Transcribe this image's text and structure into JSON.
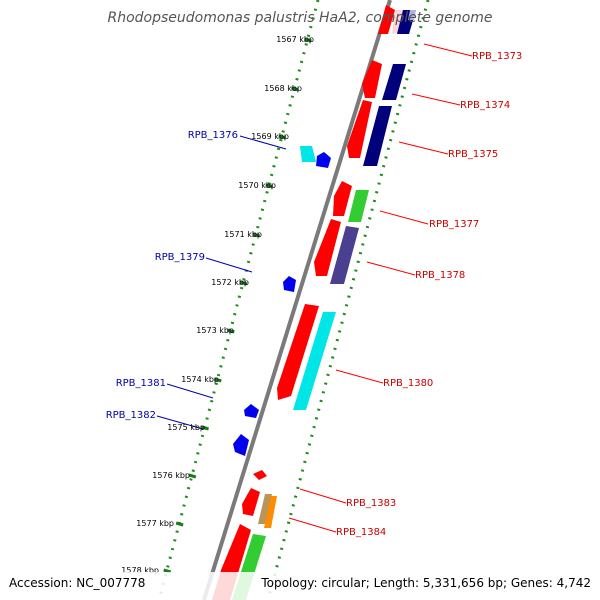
{
  "title": "Rhodopseudomonas palustris HaA2, complete genome",
  "footer": {
    "accession": "Accession: NC_007778",
    "topology": "Topology: circular; Length: 5,331,656 bp; Genes: 4,742"
  },
  "kbp_ticks": [
    "1567 kbp",
    "1568 kbp",
    "1569 kbp",
    "1570 kbp",
    "1571 kbp",
    "1572 kbp",
    "1573 kbp",
    "1574 kbp",
    "1575 kbp",
    "1576 kbp",
    "1577 kbp",
    "1578 kbp"
  ],
  "right_labels": [
    "RPB_1373",
    "RPB_1374",
    "RPB_1375",
    "RPB_1377",
    "RPB_1378",
    "RPB_1380",
    "RPB_1383",
    "RPB_1384"
  ],
  "left_labels": [
    "RPB_1376",
    "RPB_1379",
    "RPB_1381",
    "RPB_1382"
  ],
  "colors": {
    "red": "#ff0000",
    "navy": "#00007a",
    "green": "#33cc33",
    "purple": "#4b3f8f",
    "cyan": "#00e5e5",
    "blue": "#0000ee",
    "orange": "#ff8c00",
    "tan": "#b8955a",
    "label_red": "#cc0000",
    "label_blue": "#0000aa"
  }
}
